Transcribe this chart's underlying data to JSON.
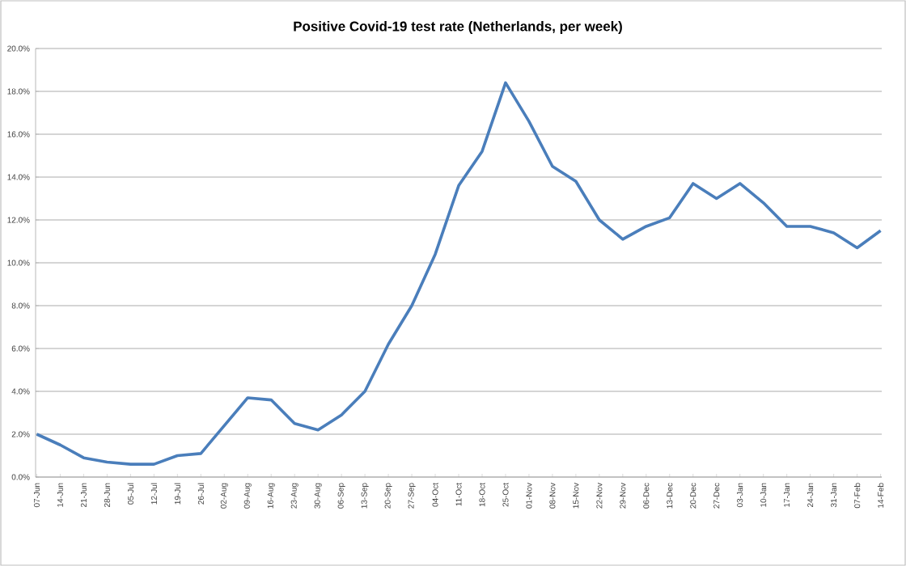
{
  "chart_data": {
    "type": "line",
    "title": "Positive Covid-19 test rate (Netherlands, per week)",
    "categories": [
      "07-Jun",
      "14-Jun",
      "21-Jun",
      "28-Jun",
      "05-Jul",
      "12-Jul",
      "19-Jul",
      "26-Jul",
      "02-Aug",
      "09-Aug",
      "16-Aug",
      "23-Aug",
      "30-Aug",
      "06-Sep",
      "13-Sep",
      "20-Sep",
      "27-Sep",
      "04-Oct",
      "11-Oct",
      "18-Oct",
      "25-Oct",
      "01-Nov",
      "08-Nov",
      "15-Nov",
      "22-Nov",
      "29-Nov",
      "06-Dec",
      "13-Dec",
      "20-Dec",
      "27-Dec",
      "03-Jan",
      "10-Jan",
      "17-Jan",
      "24-Jan",
      "31-Jan",
      "07-Feb",
      "14-Feb"
    ],
    "series": [
      {
        "color": "#4a7ebb",
        "values": [
          2.0,
          1.5,
          0.9,
          0.7,
          0.6,
          0.6,
          1.0,
          1.1,
          2.4,
          3.7,
          3.6,
          2.5,
          2.2,
          2.9,
          4.0,
          6.2,
          8.0,
          10.4,
          13.6,
          15.2,
          18.4,
          16.6,
          14.5,
          13.8,
          12.0,
          11.1,
          11.7,
          12.1,
          13.7,
          13.0,
          13.7,
          12.8,
          11.7,
          11.7,
          11.4,
          10.7,
          11.5
        ]
      }
    ],
    "ylim": [
      0,
      20
    ],
    "yticks": [
      {
        "value": 0,
        "label": "0.0%"
      },
      {
        "value": 2,
        "label": "2.0%"
      },
      {
        "value": 4,
        "label": "4.0%"
      },
      {
        "value": 6,
        "label": "6.0%"
      },
      {
        "value": 8,
        "label": "8.0%"
      },
      {
        "value": 10,
        "label": "10.0%"
      },
      {
        "value": 12,
        "label": "12.0%"
      },
      {
        "value": 14,
        "label": "14.0%"
      },
      {
        "value": 16,
        "label": "16.0%"
      },
      {
        "value": 18,
        "label": "18.0%"
      },
      {
        "value": 20,
        "label": "20.0%"
      }
    ],
    "grid": "y",
    "marker": "none",
    "line_style": "solid"
  }
}
